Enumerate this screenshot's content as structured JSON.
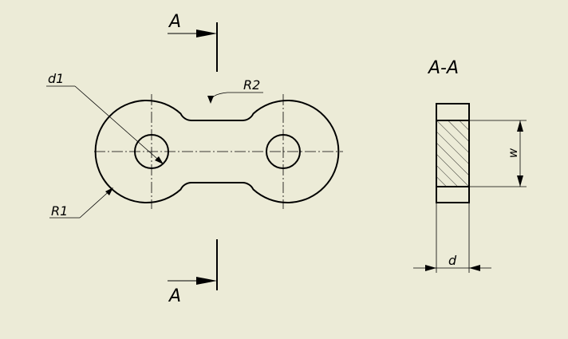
{
  "colors": {
    "background": "#ECEBD7",
    "ink": "#000000"
  },
  "section": {
    "marker_top": "A",
    "marker_bottom": "A",
    "view_title": "A-A"
  },
  "dimensions": {
    "hole_diameter": "d1",
    "outer_radius": "R1",
    "neck_radius": "R2",
    "width": "w",
    "thickness": "d"
  }
}
